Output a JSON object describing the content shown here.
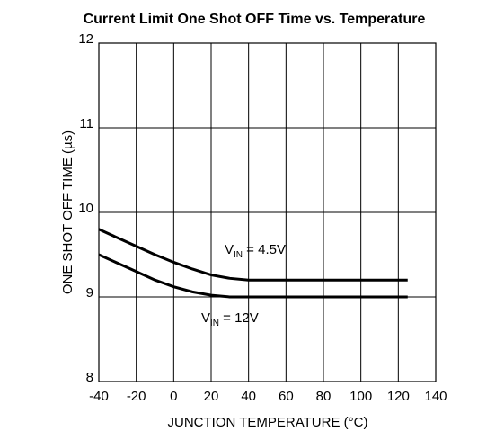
{
  "chart_data": {
    "type": "line",
    "title": "Current Limit One Shot OFF Time vs. Temperature",
    "x_label": "JUNCTION TEMPERATURE (°C)",
    "y_label": "ONE SHOT OFF TIME (µs)",
    "x": [
      -40,
      -30,
      -20,
      -10,
      0,
      10,
      20,
      30,
      40,
      125
    ],
    "series": [
      {
        "label": {
          "main": "V",
          "sub": "IN",
          "rest": " = 4.5V"
        },
        "color": "#000000",
        "values": [
          9.8,
          9.7,
          9.6,
          9.5,
          9.41,
          9.33,
          9.26,
          9.22,
          9.2,
          9.2
        ]
      },
      {
        "label": {
          "main": "V",
          "sub": "IN",
          "rest": " = 12V"
        },
        "color": "#000000",
        "values": [
          9.5,
          9.4,
          9.3,
          9.2,
          9.12,
          9.06,
          9.02,
          9.0,
          9.0,
          9.0
        ]
      }
    ],
    "xlim": [
      -40,
      140
    ],
    "xticks": [
      -40,
      -20,
      0,
      20,
      40,
      60,
      80,
      100,
      120,
      140
    ],
    "ylim": [
      8,
      12
    ],
    "yticks": [
      8,
      9,
      10,
      11,
      12
    ],
    "grid": true
  }
}
